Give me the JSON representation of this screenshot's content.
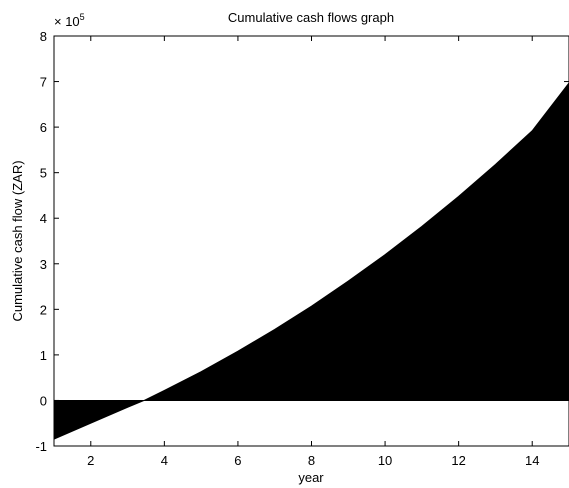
{
  "chart_data": {
    "type": "area",
    "title": "Cumulative cash flows graph",
    "xlabel": "year",
    "ylabel": "Cumulative cash flow (ZAR)",
    "y_scale_label": "× 10",
    "y_scale_exponent": "5",
    "xlim": [
      1,
      15
    ],
    "ylim": [
      -1,
      8
    ],
    "x_ticks": [
      2,
      4,
      6,
      8,
      10,
      12,
      14
    ],
    "x_tick_labels": [
      "2",
      "4",
      "6",
      "8",
      "10",
      "12",
      "14"
    ],
    "y_ticks": [
      -1,
      0,
      1,
      2,
      3,
      4,
      5,
      6,
      7,
      8
    ],
    "y_tick_labels": [
      "-1",
      "0",
      "1",
      "2",
      "3",
      "4",
      "5",
      "6",
      "7",
      "8"
    ],
    "grid": false,
    "fill_color": "#000000",
    "series": [
      {
        "x": [
          1,
          2,
          3,
          3.45,
          4,
          5,
          6,
          7,
          8,
          9,
          10,
          11,
          12,
          13,
          14,
          15
        ],
        "values": [
          -0.85,
          -0.5,
          -0.15,
          0,
          0.22,
          0.63,
          1.08,
          1.56,
          2.07,
          2.62,
          3.2,
          3.82,
          4.48,
          5.18,
          5.92,
          6.97
        ]
      }
    ]
  }
}
